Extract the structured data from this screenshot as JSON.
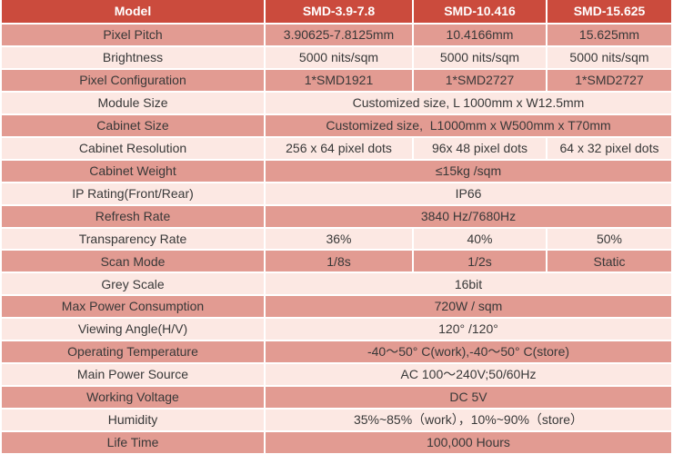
{
  "colors": {
    "header_bg": "#cb4b3d",
    "header_text": "#ffffff",
    "row_dark": "#e29b92",
    "row_light": "#fce8e3",
    "text": "#383838",
    "gap_color": "#ffffff"
  },
  "header": {
    "model_label": "Model",
    "models": [
      "SMD-3.9-7.8",
      "SMD-10.416",
      "SMD-15.625"
    ]
  },
  "rows": [
    {
      "label": "Pixel Pitch",
      "values": [
        "3.90625-7.8125mm",
        "10.4166mm",
        "15.625mm"
      ]
    },
    {
      "label": "Brightness",
      "values": [
        "5000 nits/sqm",
        "5000 nits/sqm",
        "5000 nits/sqm"
      ]
    },
    {
      "label": "Pixel Configuration",
      "values": [
        "1*SMD1921",
        "1*SMD2727",
        "1*SMD2727"
      ]
    },
    {
      "label": "Module Size",
      "span": "Customized size, L 1000mm x W12.5mm"
    },
    {
      "label": "Cabinet Size",
      "span": "Customized size,  L1000mm x W500mm x T70mm"
    },
    {
      "label": "Cabinet Resolution",
      "values": [
        "256 x 64 pixel dots",
        "96x 48 pixel dots",
        "64 x 32 pixel dots"
      ]
    },
    {
      "label": "Cabinet Weight",
      "span": "≤15kg /sqm"
    },
    {
      "label": "IP Rating(Front/Rear)",
      "span": "IP66"
    },
    {
      "label": "Refresh Rate",
      "span": "3840 Hz/7680Hz"
    },
    {
      "label": "Transparency Rate",
      "values": [
        "36%",
        "40%",
        "50%"
      ]
    },
    {
      "label": "Scan Mode",
      "values": [
        "1/8s",
        "1/2s",
        "Static"
      ]
    },
    {
      "label": "Grey Scale",
      "span": "16bit"
    },
    {
      "label": "Max Power Consumption",
      "span": "720W / sqm"
    },
    {
      "label": "Viewing Angle(H/V)",
      "span": "120° /120°"
    },
    {
      "label": "Operating Temperature",
      "span": "-40～50° C(work),-40～50° C(store)"
    },
    {
      "label": "Main Power Source",
      "span": "AC 100～240V;50/60Hz"
    },
    {
      "label": "Working Voltage",
      "span": "DC 5V"
    },
    {
      "label": "Humidity",
      "span": "35%~85%（work），10%~90%（store）"
    },
    {
      "label": "Life Time",
      "span": "100,000 Hours"
    }
  ]
}
